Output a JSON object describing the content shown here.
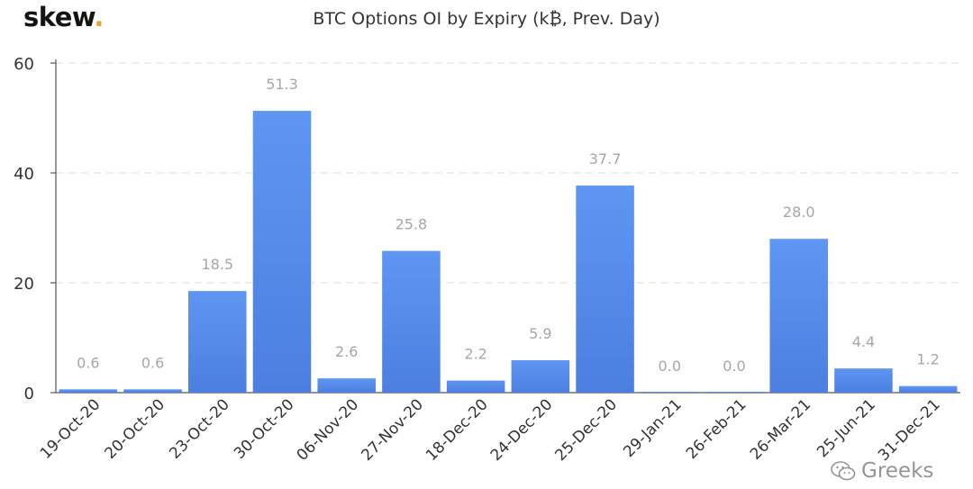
{
  "header": {
    "brand": "skew",
    "brand_dot": "."
  },
  "watermark": {
    "text": "Greeks"
  },
  "chart_data": {
    "type": "bar",
    "title": "BTC Options OI by Expiry (k₿, Prev. Day)",
    "xlabel": "",
    "ylabel": "",
    "ylim": [
      0,
      60
    ],
    "yticks": [
      0,
      20,
      40,
      60
    ],
    "grid": true,
    "categories": [
      "19-Oct-20",
      "20-Oct-20",
      "23-Oct-20",
      "30-Oct-20",
      "06-Nov-20",
      "27-Nov-20",
      "18-Dec-20",
      "24-Dec-20",
      "25-Dec-20",
      "29-Jan-21",
      "26-Feb-21",
      "26-Mar-21",
      "25-Jun-21",
      "31-Dec-21"
    ],
    "values": [
      0.6,
      0.6,
      18.5,
      51.3,
      2.6,
      25.8,
      2.2,
      5.9,
      37.7,
      0.0,
      0.0,
      28.0,
      4.4,
      1.2
    ],
    "value_labels": [
      "0.6",
      "0.6",
      "18.5",
      "51.3",
      "2.6",
      "25.8",
      "2.2",
      "5.9",
      "37.7",
      "0.0",
      "0.0",
      "28.0",
      "4.4",
      "1.2"
    ],
    "colors": {
      "bar_top": "#5f96f2",
      "bar_bottom": "#4c7fe0",
      "grid": "#e3e3e3",
      "axis": "#555555",
      "label": "#a6a6a6",
      "tick": "#333333"
    }
  }
}
